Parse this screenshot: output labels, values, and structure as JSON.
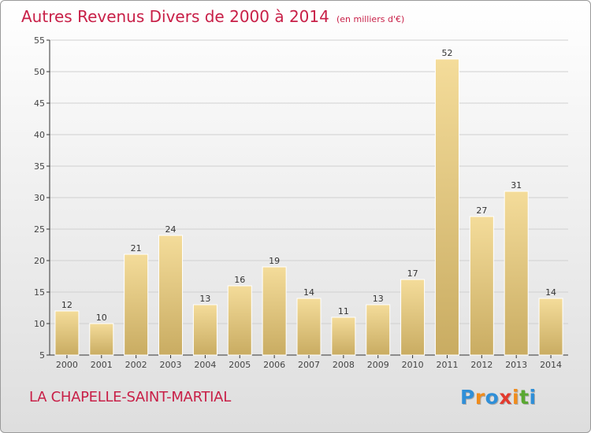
{
  "title": "Autres Revenus Divers de 2000 à 2014",
  "unit_note": "(en milliers d'€)",
  "location": "LA CHAPELLE-SAINT-MARTIAL",
  "logo": {
    "text": "Proxiti",
    "letters": [
      {
        "ch": "P",
        "color": "#2f8fd8"
      },
      {
        "ch": "r",
        "color": "#f08c1c"
      },
      {
        "ch": "o",
        "color": "#2f8fd8"
      },
      {
        "ch": "x",
        "color": "#e23a2e"
      },
      {
        "ch": "i",
        "color": "#f08c1c"
      },
      {
        "ch": "t",
        "color": "#5aa832"
      },
      {
        "ch": "i",
        "color": "#2f8fd8"
      }
    ]
  },
  "colors": {
    "bar_light": "#f4dc9a",
    "bar_dark": "#c9ac62",
    "axis": "#333333",
    "grid": "#d0d0d0",
    "accent": "#c81f47"
  },
  "chart_data": {
    "type": "bar",
    "title": "Autres Revenus Divers de 2000 à 2014",
    "xlabel": "",
    "ylabel": "",
    "categories": [
      "2000",
      "2001",
      "2002",
      "2003",
      "2004",
      "2005",
      "2006",
      "2007",
      "2008",
      "2009",
      "2010",
      "2011",
      "2012",
      "2013",
      "2014"
    ],
    "values": [
      12,
      10,
      21,
      24,
      13,
      16,
      19,
      14,
      11,
      13,
      17,
      52,
      27,
      31,
      14
    ],
    "ylim": [
      5,
      55
    ],
    "yticks": [
      5,
      10,
      15,
      20,
      25,
      30,
      35,
      40,
      45,
      50,
      55
    ],
    "grid": true
  }
}
